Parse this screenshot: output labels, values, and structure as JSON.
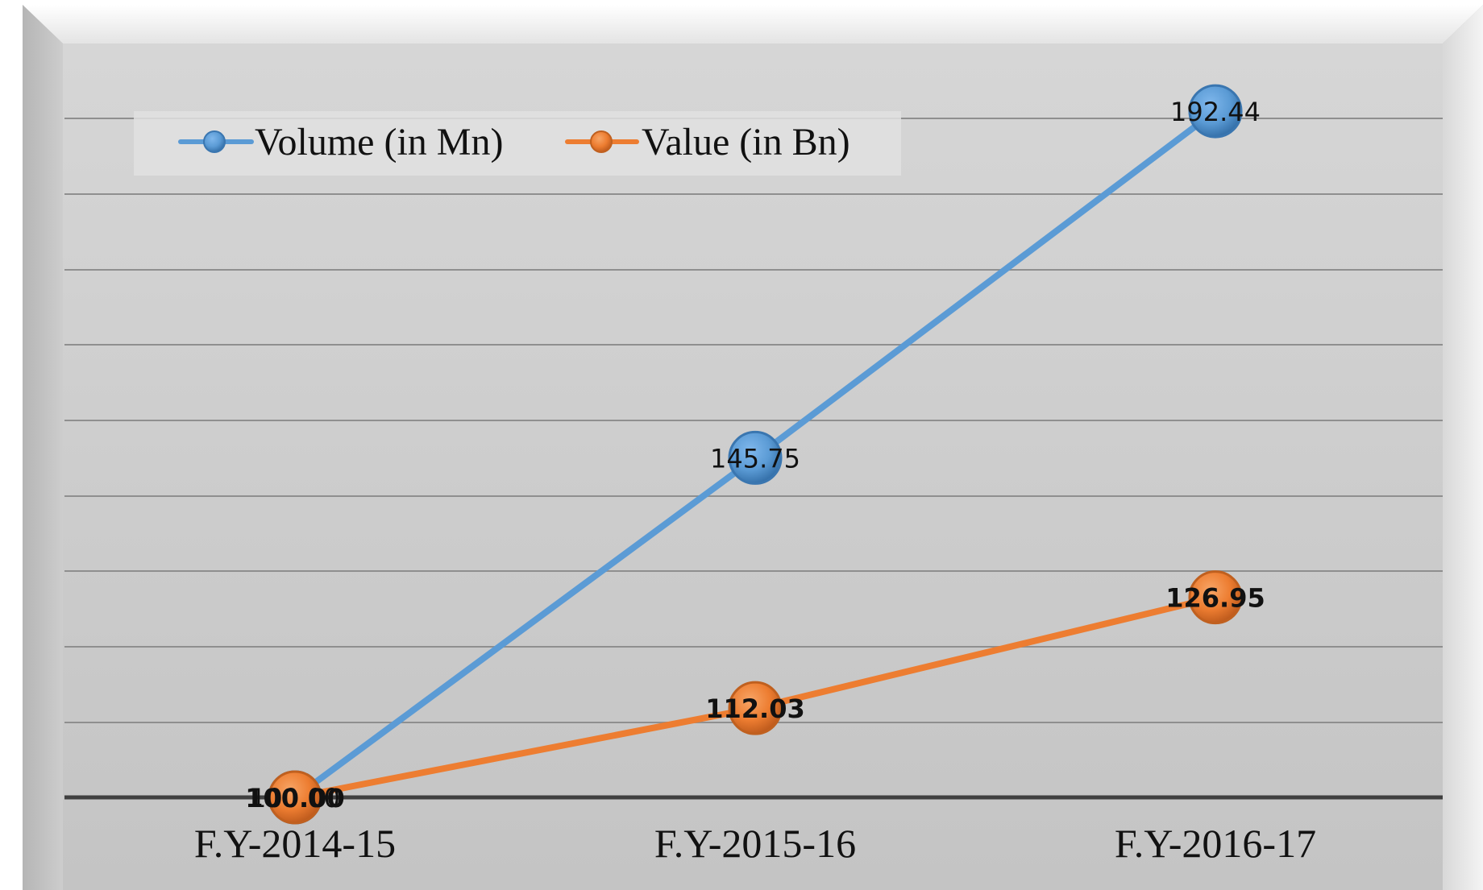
{
  "chart_data": {
    "type": "line",
    "categories": [
      "F.Y-2014-15",
      "F.Y-2015-16",
      "F.Y-2016-17"
    ],
    "series": [
      {
        "name": "Volume (in Mn)",
        "values": [
          100.0,
          145.75,
          192.44
        ],
        "labels": [
          "100.00",
          "145.75",
          "192.44"
        ],
        "color": "#5b9bd5"
      },
      {
        "name": "Value (in Bn)",
        "values": [
          100.0,
          112.03,
          126.95
        ],
        "labels": [
          "100.00",
          "112.03",
          "126.95"
        ],
        "color": "#ed7d31"
      }
    ],
    "ylim": [
      100,
      202
    ],
    "grid": true,
    "legend_position": "top-left",
    "y_tick_labels_visible": false
  }
}
